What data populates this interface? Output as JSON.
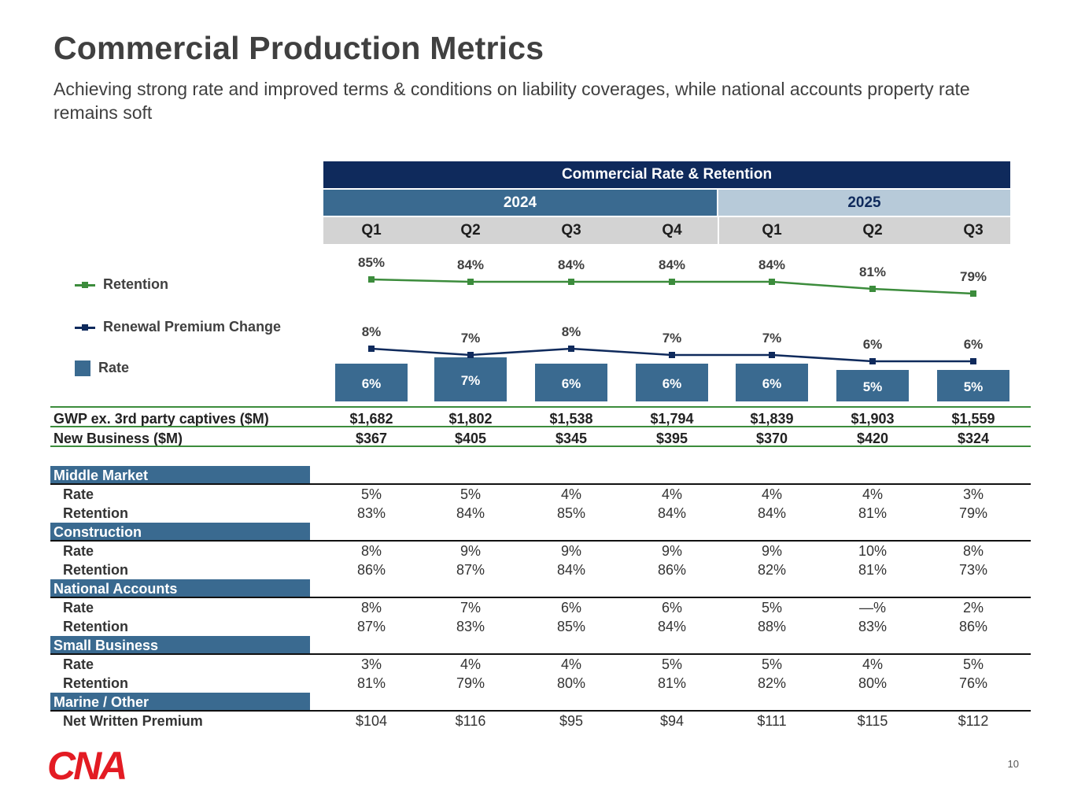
{
  "title": "Commercial Production Metrics",
  "subtitle": "Achieving strong rate and improved terms & conditions on liability coverages, while national accounts property rate remains soft",
  "header": {
    "main": "Commercial Rate & Retention",
    "year_2024": "2024",
    "year_2025": "2025",
    "quarters": [
      "Q1",
      "Q2",
      "Q3",
      "Q4",
      "Q1",
      "Q2",
      "Q3"
    ]
  },
  "legend": {
    "retention": "Retention",
    "renewal": "Renewal Premium Change",
    "rate": "Rate"
  },
  "colors": {
    "retention": "#3c8c3c",
    "renewal": "#0f2a5c",
    "rate_bar": "#3a6a90",
    "section": "#3a6a90"
  },
  "chart_data": {
    "type": "bar",
    "title": "Commercial Rate & Retention",
    "categories": [
      "2024 Q1",
      "2024 Q2",
      "2024 Q3",
      "2024 Q4",
      "2025 Q1",
      "2025 Q2",
      "2025 Q3"
    ],
    "series": [
      {
        "name": "Retention",
        "kind": "line",
        "values": [
          85,
          84,
          84,
          84,
          84,
          81,
          79
        ],
        "labels": [
          "85%",
          "84%",
          "84%",
          "84%",
          "84%",
          "81%",
          "79%"
        ]
      },
      {
        "name": "Renewal Premium Change",
        "kind": "line",
        "values": [
          8,
          7,
          8,
          7,
          7,
          6,
          6
        ],
        "labels": [
          "8%",
          "7%",
          "8%",
          "7%",
          "7%",
          "6%",
          "6%"
        ]
      },
      {
        "name": "Rate",
        "kind": "bar",
        "values": [
          6,
          7,
          6,
          6,
          6,
          5,
          5
        ],
        "labels": [
          "6%",
          "7%",
          "6%",
          "6%",
          "6%",
          "5%",
          "5%"
        ]
      }
    ],
    "ylabel": "",
    "xlabel": ""
  },
  "summary_rows": [
    {
      "label": "GWP ex. 3rd party captives ($M)",
      "values": [
        "$1,682",
        "$1,802",
        "$1,538",
        "$1,794",
        "$1,839",
        "$1,903",
        "$1,559"
      ]
    },
    {
      "label": "New Business ($M)",
      "values": [
        "$367",
        "$405",
        "$345",
        "$395",
        "$370",
        "$420",
        "$324"
      ]
    }
  ],
  "sections": [
    {
      "name": "Middle Market",
      "rows": [
        {
          "label": "Rate",
          "values": [
            "5%",
            "5%",
            "4%",
            "4%",
            "4%",
            "4%",
            "3%"
          ]
        },
        {
          "label": "Retention",
          "values": [
            "83%",
            "84%",
            "85%",
            "84%",
            "84%",
            "81%",
            "79%"
          ]
        }
      ]
    },
    {
      "name": "Construction",
      "rows": [
        {
          "label": "Rate",
          "values": [
            "8%",
            "9%",
            "9%",
            "9%",
            "9%",
            "10%",
            "8%"
          ]
        },
        {
          "label": "Retention",
          "values": [
            "86%",
            "87%",
            "84%",
            "86%",
            "82%",
            "81%",
            "73%"
          ]
        }
      ]
    },
    {
      "name": "National Accounts",
      "rows": [
        {
          "label": "Rate",
          "values": [
            "8%",
            "7%",
            "6%",
            "6%",
            "5%",
            "—%",
            "2%"
          ]
        },
        {
          "label": "Retention",
          "values": [
            "87%",
            "83%",
            "85%",
            "84%",
            "88%",
            "83%",
            "86%"
          ]
        }
      ]
    },
    {
      "name": "Small Business",
      "rows": [
        {
          "label": "Rate",
          "values": [
            "3%",
            "4%",
            "4%",
            "5%",
            "5%",
            "4%",
            "5%"
          ]
        },
        {
          "label": "Retention",
          "values": [
            "81%",
            "79%",
            "80%",
            "81%",
            "82%",
            "80%",
            "76%"
          ]
        }
      ]
    },
    {
      "name": "Marine / Other",
      "rows": [
        {
          "label": "Net Written Premium",
          "values": [
            "$104",
            "$116",
            "$95",
            "$94",
            "$111",
            "$115",
            "$112"
          ]
        }
      ]
    }
  ],
  "footer": {
    "logo_text": "CNA",
    "page_number": "10"
  }
}
